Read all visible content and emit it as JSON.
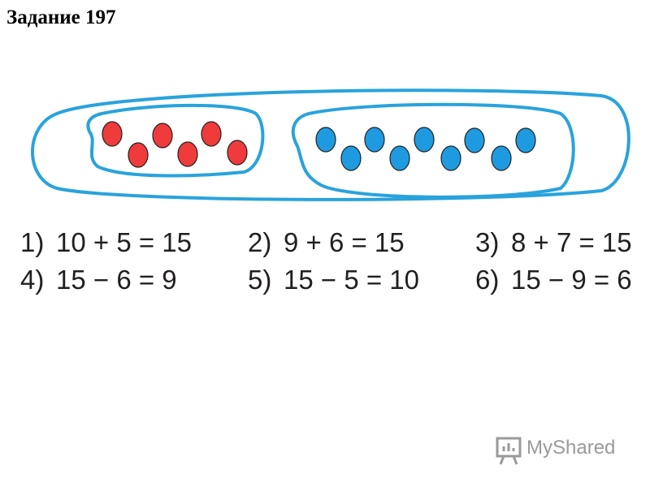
{
  "title": "Задание 197",
  "equations": [
    {
      "number": "1)",
      "expression": "10 + 5 = 15"
    },
    {
      "number": "2)",
      "expression": "9 + 6 = 15"
    },
    {
      "number": "3)",
      "expression": "8 + 7 = 15"
    },
    {
      "number": "4)",
      "expression": "15 − 6 = 9"
    },
    {
      "number": "5)",
      "expression": "15 − 5 = 10"
    },
    {
      "number": "6)",
      "expression": "15 − 9 = 6"
    }
  ],
  "watermark": "MyShared"
}
